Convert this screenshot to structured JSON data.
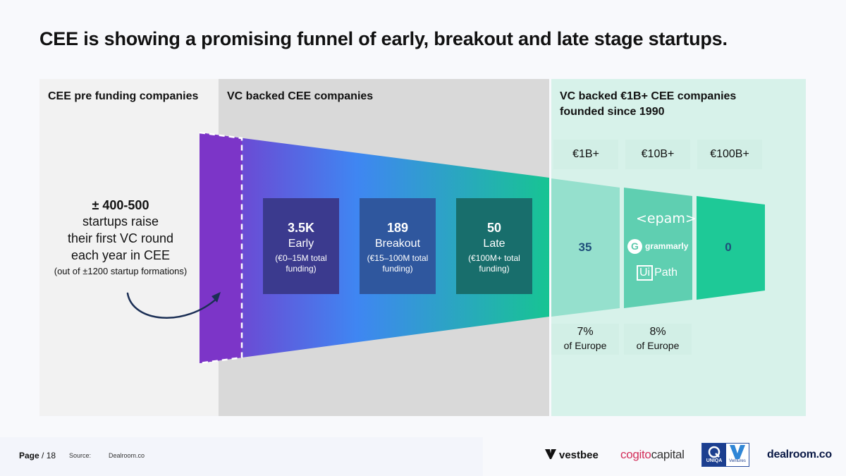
{
  "title": "CEE is showing a promising funnel of early, breakout and late stage startups.",
  "panels": {
    "pre_funding": {
      "heading": "CEE pre funding companies",
      "count": "± 400-500",
      "line1": "startups raise",
      "line2": "their first VC round",
      "line3": "each year in CEE",
      "note": "(out of ±1200 startup formations)"
    },
    "vc_backed": {
      "heading": "VC backed CEE companies",
      "stages": [
        {
          "count": "3.5K",
          "label": "Early",
          "note": "(€0–15M total funding)"
        },
        {
          "count": "189",
          "label": "Breakout",
          "note": "(€15–100M total funding)"
        },
        {
          "count": "50",
          "label": "Late",
          "note": "(€100M+ total funding)"
        }
      ]
    },
    "unicorns": {
      "heading_line1": "VC backed €1B+ CEE companies",
      "heading_line2": "founded since 1990",
      "tiers": [
        {
          "label": "€1B+",
          "value": "35",
          "pct": "7%",
          "pct_sub": "of Europe"
        },
        {
          "label": "€10B+",
          "pct": "8%",
          "pct_sub": "of Europe"
        },
        {
          "label": "€100B+",
          "value": "0"
        }
      ],
      "logos": {
        "epam": "<epam>",
        "grammarly": "grammarly",
        "grammarly_mark": "G",
        "uipath_box": "Ui",
        "uipath_rest": "Path"
      }
    }
  },
  "colors": {
    "funnel_start": "#7b35c9",
    "funnel_mid": "#3f86f2",
    "funnel_end": "#17c493",
    "value_text": "#1e4d7a",
    "arrow": "#1b2f55"
  },
  "footer": {
    "page_label": "Page",
    "page_number": "/ 18",
    "source_label": "Source:",
    "source_value": "Dealroom.co",
    "logos": {
      "vestbee": "vestbee",
      "cogito_a": "cogito",
      "cogito_b": "capital",
      "uniqa": "UNIQA",
      "ventures": "Ventures",
      "dealroom": "dealroom.co"
    }
  }
}
